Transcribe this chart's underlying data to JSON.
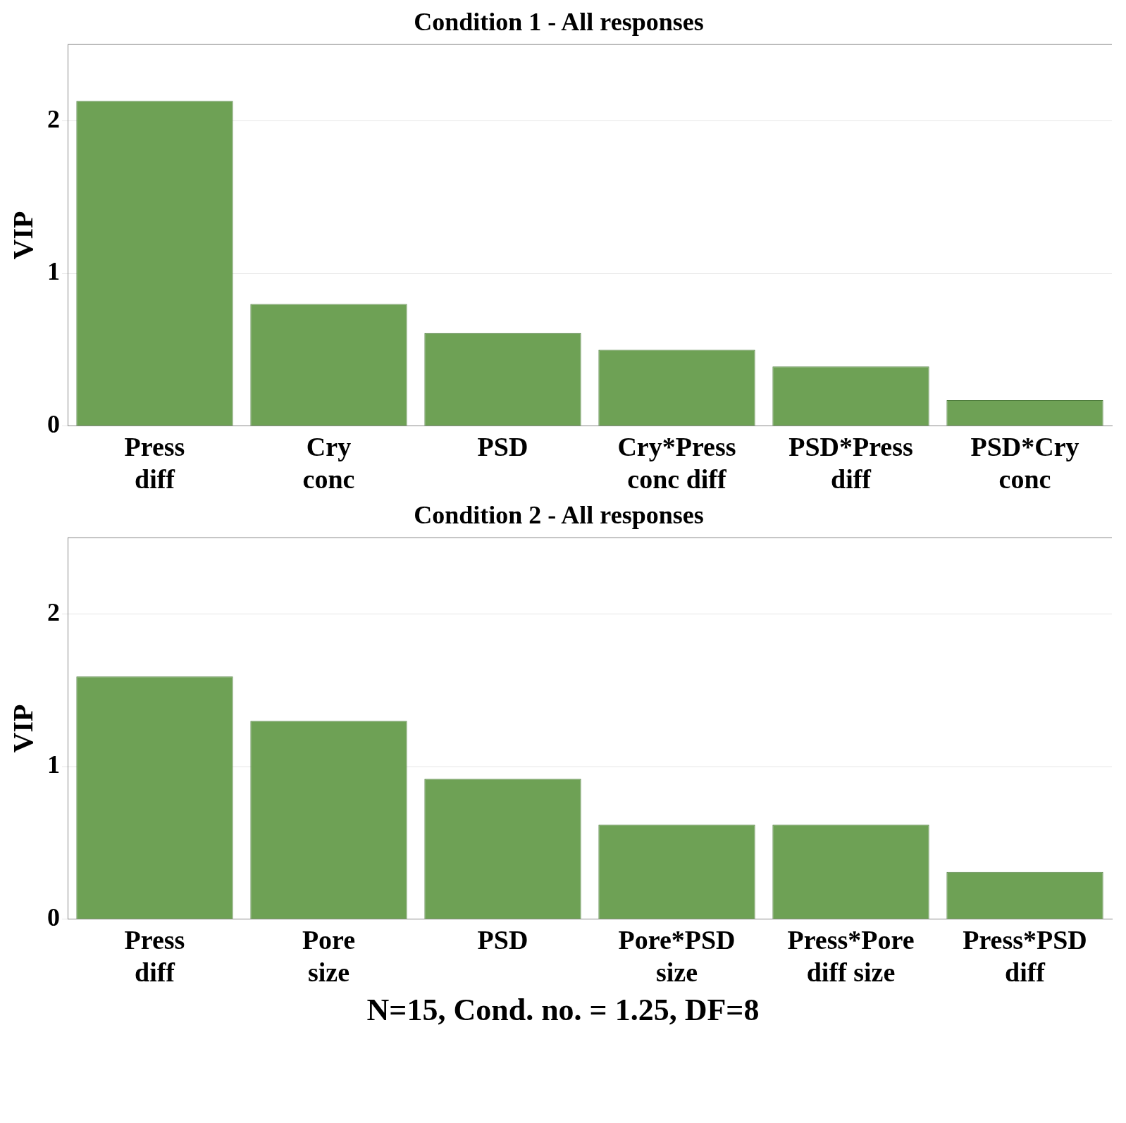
{
  "chart_data": [
    {
      "type": "bar",
      "title": "Condition 1 - All responses",
      "ylabel": "VIP",
      "categories": [
        "Press diff",
        "Cry conc",
        "PSD",
        "Cry*Press conc diff",
        "PSD*Press diff",
        "PSD*Cry conc"
      ],
      "values": [
        2.13,
        0.8,
        0.61,
        0.5,
        0.39,
        0.17
      ],
      "color": "#6ea155",
      "ylim": [
        0,
        2.5
      ],
      "yticks": [
        0,
        1,
        2
      ],
      "grid": "y"
    },
    {
      "type": "bar",
      "title": "Condition 2 - All responses",
      "ylabel": "VIP",
      "categories": [
        "Press diff",
        "Pore size",
        "PSD",
        "Pore*PSD size",
        "Press*Pore diff size",
        "Press*PSD diff"
      ],
      "values": [
        1.59,
        1.3,
        0.92,
        0.62,
        0.62,
        0.31
      ],
      "color": "#6ea155",
      "ylim": [
        0,
        2.5
      ],
      "yticks": [
        0,
        1,
        2
      ],
      "grid": "y",
      "annotations": [
        "N=15, Cond. no. = 1.25, DF=8"
      ]
    }
  ]
}
